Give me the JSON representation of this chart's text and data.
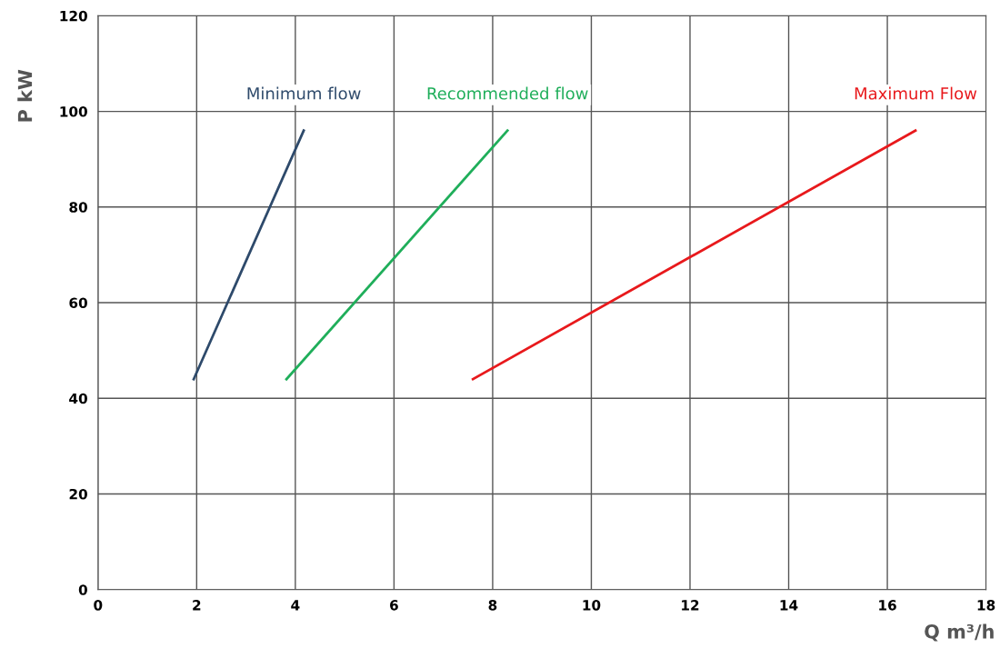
{
  "chart_data": {
    "type": "line",
    "xlabel": "Q m³/h",
    "ylabel": "P kW",
    "xlim": [
      0,
      18
    ],
    "xticks": [
      0,
      2,
      4,
      6,
      8,
      10,
      12,
      14,
      16,
      18
    ],
    "ylim": [
      0,
      120
    ],
    "yticks": [
      0,
      20,
      40,
      60,
      80,
      100,
      120
    ],
    "grid": true,
    "legend": false,
    "marker": "none",
    "line_style": "solid",
    "series": [
      {
        "name": "Minimum flow",
        "color": "#2e4a6b",
        "x": [
          1.94,
          4.17
        ],
        "values": [
          44,
          96
        ]
      },
      {
        "name": "Recommended flow",
        "color": "#1fae5a",
        "x": [
          3.82,
          8.3
        ],
        "values": [
          44,
          96
        ]
      },
      {
        "name": "Maximum Flow",
        "color": "#e8191c",
        "x": [
          7.6,
          16.57
        ],
        "values": [
          44,
          96
        ]
      }
    ]
  }
}
